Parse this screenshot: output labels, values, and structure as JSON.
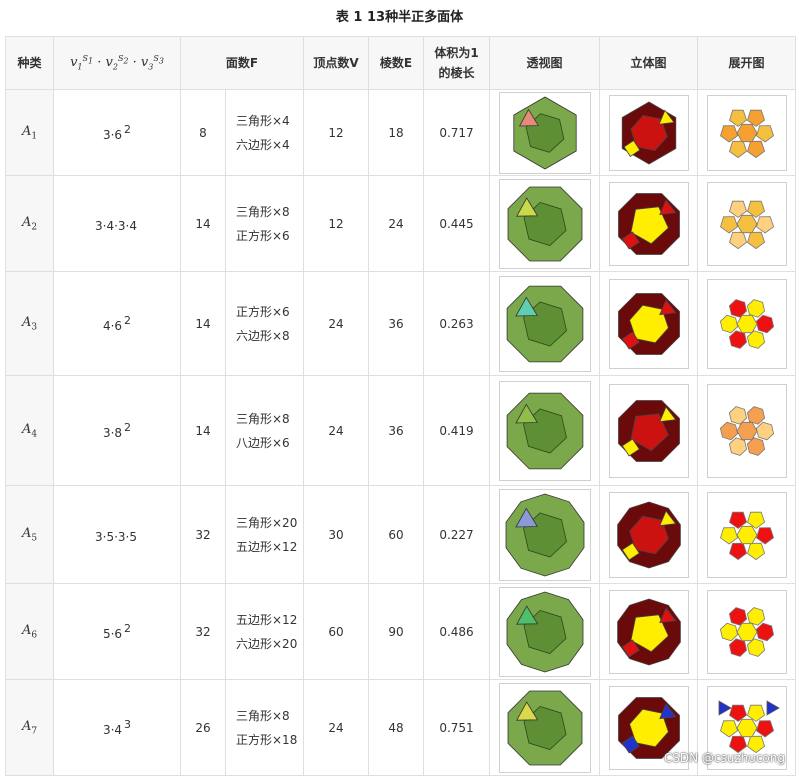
{
  "caption": "表 1 13种半正多面体",
  "headers": {
    "kind": "种类",
    "faces": "面数F",
    "vertices": "顶点数V",
    "edges": "棱数E",
    "volume_line1": "体积为1",
    "volume_line2": "的棱长",
    "perspective": "透视图",
    "solid": "立体图",
    "net": "展开图"
  },
  "rows": [
    {
      "label": "A",
      "sub": "1",
      "config": "3·6",
      "exp": "2",
      "faces_total": "8",
      "face1": "三角形×4",
      "face2": "六边形×4",
      "vertices": "12",
      "edges": "18",
      "edge_length": "0.717"
    },
    {
      "label": "A",
      "sub": "2",
      "config": "3·4·3·4",
      "exp": "",
      "faces_total": "14",
      "face1": "三角形×8",
      "face2": "正方形×6",
      "vertices": "12",
      "edges": "24",
      "edge_length": "0.445"
    },
    {
      "label": "A",
      "sub": "3",
      "config": "4·6",
      "exp": "2",
      "faces_total": "14",
      "face1": "正方形×6",
      "face2": "六边形×8",
      "vertices": "24",
      "edges": "36",
      "edge_length": "0.263"
    },
    {
      "label": "A",
      "sub": "4",
      "config": "3·8",
      "exp": "2",
      "faces_total": "14",
      "face1": "三角形×8",
      "face2": "八边形×6",
      "vertices": "24",
      "edges": "36",
      "edge_length": "0.419"
    },
    {
      "label": "A",
      "sub": "5",
      "config": "3·5·3·5",
      "exp": "",
      "faces_total": "32",
      "face1": "三角形×20",
      "face2": "五边形×12",
      "vertices": "30",
      "edges": "60",
      "edge_length": "0.227"
    },
    {
      "label": "A",
      "sub": "6",
      "config": "5·6",
      "exp": "2",
      "faces_total": "32",
      "face1": "五边形×12",
      "face2": "六边形×20",
      "vertices": "60",
      "edges": "90",
      "edge_length": "0.486"
    },
    {
      "label": "A",
      "sub": "7",
      "config": "3·4",
      "exp": "3",
      "faces_total": "26",
      "face1": "三角形×8",
      "face2": "正方形×18",
      "vertices": "24",
      "edges": "48",
      "edge_length": "0.751"
    }
  ],
  "watermark": "CSDN @csuzhucong"
}
